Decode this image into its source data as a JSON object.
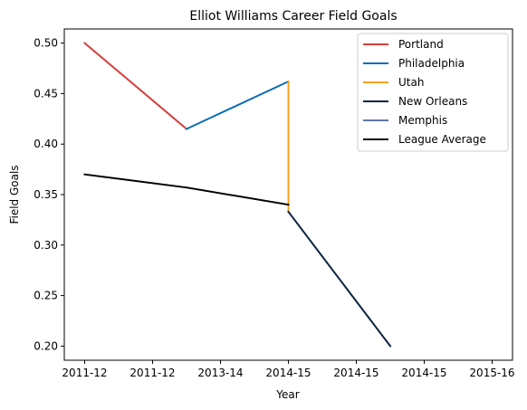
{
  "chart_data": {
    "type": "line",
    "title": "Elliot Williams Career Field Goals",
    "xlabel": "Year",
    "ylabel": "Field Goals",
    "x_tick_labels": [
      "2011-12",
      "2011-12",
      "2013-14",
      "2014-15",
      "2014-15",
      "2014-15",
      "2015-16"
    ],
    "y_ticks": [
      "0.20",
      "0.25",
      "0.30",
      "0.35",
      "0.40",
      "0.45",
      "0.50"
    ],
    "ylim": [
      0.186,
      0.514
    ],
    "xlim": [
      -0.2,
      4.2
    ],
    "grid": false,
    "legend_position": "upper right",
    "series": [
      {
        "name": "Portland",
        "color": "#d43f3a",
        "points": [
          [
            0,
            0.5
          ],
          [
            1,
            0.415
          ]
        ]
      },
      {
        "name": "Philadelphia",
        "color": "#0a6db6",
        "points": [
          [
            1,
            0.415
          ],
          [
            2,
            0.462
          ]
        ]
      },
      {
        "name": "Utah",
        "color": "#f9a01b",
        "points": [
          [
            2,
            0.462
          ],
          [
            2,
            0.333
          ]
        ]
      },
      {
        "name": "New Orleans",
        "color": "#0c2340",
        "points": [
          [
            2,
            0.333
          ],
          [
            3,
            0.2
          ]
        ]
      },
      {
        "name": "Memphis",
        "color": "#5d76a9",
        "points": []
      },
      {
        "name": "League Average",
        "color": "#000000",
        "points": [
          [
            0,
            0.37
          ],
          [
            1,
            0.357
          ],
          [
            2,
            0.34
          ]
        ]
      }
    ]
  }
}
